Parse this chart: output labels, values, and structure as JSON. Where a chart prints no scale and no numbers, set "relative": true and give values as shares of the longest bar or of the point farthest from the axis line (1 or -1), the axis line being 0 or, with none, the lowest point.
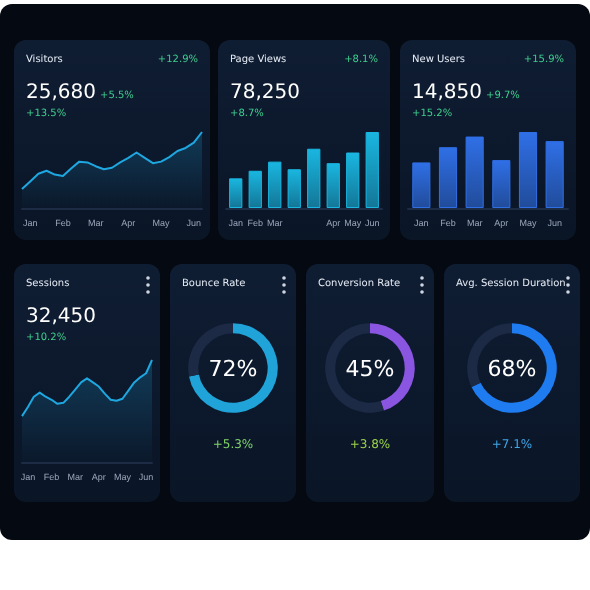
{
  "chart_data": [
    {
      "type": "area",
      "title": "Visitors",
      "subtitle": "25,680",
      "annotations": [
        "+12.9%",
        "+5.5%",
        "+13.5%"
      ],
      "relative": true,
      "marker": "none",
      "tick_labels": "x",
      "categories": [
        null,
        "Jan",
        null,
        null,
        null,
        "Feb",
        null,
        null,
        null,
        "Mar",
        null,
        null,
        null,
        "Apr",
        null,
        null,
        null,
        "May",
        null,
        null,
        null,
        "Jun",
        null
      ],
      "series": [
        {
          "color": "#1ea7e0",
          "values": [
            0.25,
            0.35,
            0.45,
            0.49,
            0.44,
            0.42,
            0.52,
            0.61,
            0.6,
            0.55,
            0.51,
            0.53,
            0.6,
            0.66,
            0.73,
            0.66,
            0.59,
            0.61,
            0.67,
            0.75,
            0.79,
            0.86,
            1.0
          ]
        }
      ]
    },
    {
      "type": "bar",
      "title": "Page Views",
      "subtitle": "78,250",
      "annotations": [
        "+8.1%",
        "+8.7%"
      ],
      "relative": true,
      "tick_labels": "x",
      "categories": [
        "Jan",
        "Feb",
        "Mar",
        null,
        null,
        "Apr",
        "May",
        "Jun"
      ],
      "series": [
        {
          "color": "#19b6e0",
          "values": [
            0.39,
            0.49,
            0.61,
            0.51,
            0.78,
            0.59,
            0.73,
            1.0
          ]
        }
      ]
    },
    {
      "type": "bar",
      "title": "New Users",
      "subtitle": "14,850",
      "annotations": [
        "+15.9%",
        "+9.7%",
        "+15.2%"
      ],
      "relative": true,
      "tick_labels": "x",
      "categories": [
        "Jan",
        "Feb",
        "Mar",
        "Apr",
        "May",
        "Jun"
      ],
      "series": [
        {
          "color": "#2f6fe6",
          "values": [
            0.6,
            0.8,
            0.94,
            0.63,
            1.0,
            0.88
          ]
        }
      ]
    },
    {
      "type": "area",
      "title": "Sessions",
      "subtitle": "32,450",
      "annotations": [
        "+10.2%"
      ],
      "relative": true,
      "marker": "none",
      "tick_labels": "x",
      "categories": [
        null,
        "Jan",
        null,
        null,
        null,
        "Feb",
        null,
        null,
        null,
        "Mar",
        null,
        null,
        null,
        "Apr",
        null,
        null,
        null,
        "May",
        null,
        null,
        null,
        "Jun",
        null
      ],
      "series": [
        {
          "color": "#1ea7e0",
          "values": [
            0.45,
            0.54,
            0.64,
            0.68,
            0.64,
            0.61,
            0.57,
            0.58,
            0.64,
            0.71,
            0.78,
            0.82,
            0.78,
            0.74,
            0.67,
            0.61,
            0.6,
            0.62,
            0.7,
            0.78,
            0.83,
            0.87,
            1.0
          ]
        }
      ]
    },
    {
      "type": "donut",
      "title": "Bounce Rate",
      "annotations": [
        "72%",
        "+5.3%"
      ],
      "categories": [
        null,
        null
      ],
      "values": [
        72,
        28
      ],
      "colors": [
        "#1fa3d8",
        "#1c2a45"
      ]
    },
    {
      "type": "donut",
      "title": "Conversion Rate",
      "annotations": [
        "45%",
        "+3.8%"
      ],
      "categories": [
        null,
        null
      ],
      "values": [
        45,
        55
      ],
      "colors": [
        "#8a55e0",
        "#1c2a45"
      ]
    },
    {
      "type": "donut",
      "title": "Avg. Session Duration",
      "annotations": [
        "68%",
        "+7.1%"
      ],
      "categories": [
        null,
        null
      ],
      "values": [
        68,
        32
      ],
      "colors": [
        "#1e7bf0",
        "#1c2a45"
      ]
    }
  ]
}
